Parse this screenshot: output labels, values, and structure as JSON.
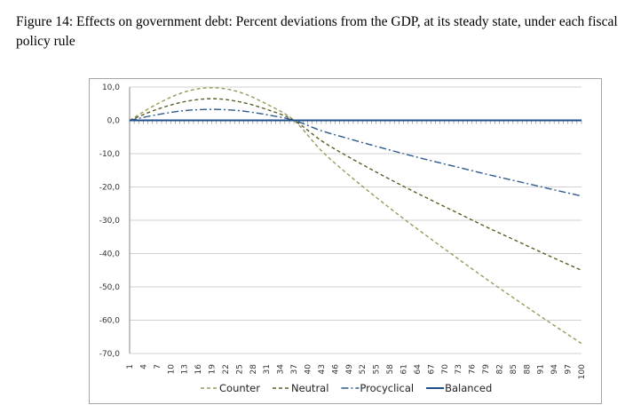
{
  "caption": "Figure 14: Effects on government debt: Percent deviations from the GDP, at its steady state, under each fiscal policy rule",
  "chart_data": {
    "type": "line",
    "title": "",
    "xlabel": "",
    "ylabel": "",
    "ylim": [
      -70,
      10
    ],
    "yticks": [
      "10,0",
      "0,0",
      "-10,0",
      "-20,0",
      "-30,0",
      "-40,0",
      "-50,0",
      "-60,0",
      "-70,0"
    ],
    "xlim": [
      1,
      100
    ],
    "xticks": [
      "1",
      "4",
      "7",
      "10",
      "13",
      "16",
      "19",
      "22",
      "25",
      "28",
      "31",
      "34",
      "37",
      "40",
      "43",
      "46",
      "49",
      "52",
      "55",
      "58",
      "61",
      "64",
      "67",
      "70",
      "73",
      "76",
      "79",
      "82",
      "85",
      "88",
      "91",
      "94",
      "97",
      "100"
    ],
    "grid": "horizontal",
    "legend": "bottom",
    "x": [
      1,
      7,
      13,
      19,
      25,
      31,
      37,
      43,
      49,
      55,
      61,
      67,
      73,
      79,
      85,
      91,
      97,
      100
    ],
    "series": [
      {
        "name": "Counter",
        "color": "#9a9a5c",
        "dash": "dashed",
        "values": [
          0,
          4.9,
          8.5,
          9.8,
          8.5,
          4.9,
          0,
          -9.1,
          -16.4,
          -23.1,
          -29.5,
          -35.6,
          -41.6,
          -47.5,
          -53.2,
          -58.8,
          -64.3,
          -67.0
        ]
      },
      {
        "name": "Neutral",
        "color": "#5e5e28",
        "dash": "dashed",
        "values": [
          0,
          3.3,
          5.6,
          6.5,
          5.6,
          3.3,
          0,
          -6.1,
          -11.0,
          -15.5,
          -19.8,
          -23.9,
          -27.9,
          -31.9,
          -35.7,
          -39.5,
          -43.2,
          -45.0
        ]
      },
      {
        "name": "Procyclical",
        "color": "#2e5b8c",
        "dash": "dashdot",
        "values": [
          0,
          1.7,
          2.9,
          3.3,
          2.9,
          1.7,
          0,
          -3.1,
          -5.5,
          -7.8,
          -10.0,
          -12.1,
          -14.1,
          -16.1,
          -18.0,
          -19.9,
          -21.8,
          -22.7
        ]
      },
      {
        "name": "Balanced",
        "color": "#1f4e8c",
        "dash": "solid",
        "values": [
          0,
          0,
          0,
          0,
          0,
          0,
          0,
          0,
          0,
          0,
          0,
          0,
          0,
          0,
          0,
          0,
          0,
          0
        ]
      }
    ]
  }
}
